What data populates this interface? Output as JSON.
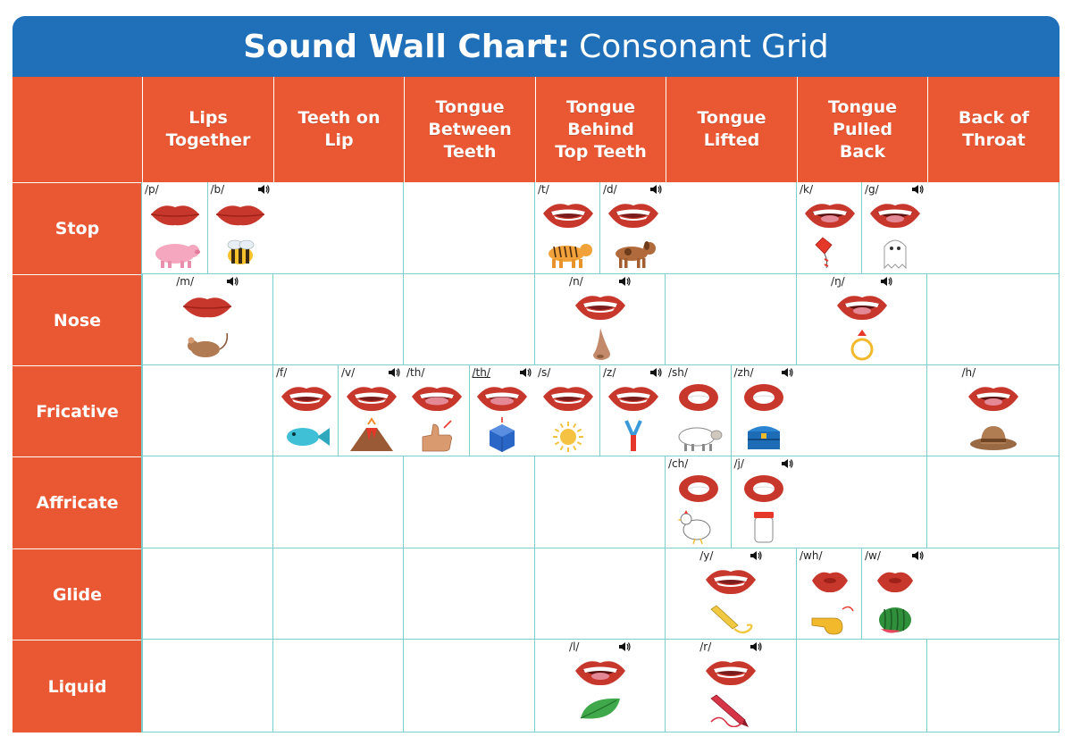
{
  "title": {
    "bold": "Sound Wall Chart:",
    "light": "Consonant Grid"
  },
  "columns": [
    "Lips Together",
    "Teeth on Lip",
    "Tongue Between Teeth",
    "Tongue Behind Top Teeth",
    "Tongue Lifted",
    "Tongue Pulled Back",
    "Back of Throat"
  ],
  "column_lines": [
    [
      "Lips",
      "Together"
    ],
    [
      "Teeth on",
      "Lip"
    ],
    [
      "Tongue",
      "Between",
      "Teeth"
    ],
    [
      "Tongue",
      "Behind",
      "Top Teeth"
    ],
    [
      "Tongue",
      "Lifted"
    ],
    [
      "Tongue",
      "Pulled",
      "Back"
    ],
    [
      "Back of",
      "Throat"
    ]
  ],
  "rows": [
    "Stop",
    "Nose",
    "Fricative",
    "Affricate",
    "Glide",
    "Liquid"
  ],
  "cards": [
    {
      "row": 0,
      "col": 0,
      "slot": 0,
      "symbol": "/p/",
      "mouth": "closed",
      "picture": "pig-icon",
      "speaker": false
    },
    {
      "row": 0,
      "col": 0,
      "slot": 1,
      "symbol": "/b/",
      "mouth": "closed",
      "picture": "bee-icon",
      "speaker": true
    },
    {
      "row": 0,
      "col": 3,
      "slot": 0,
      "symbol": "/t/",
      "mouth": "teeth",
      "picture": "tiger-icon",
      "speaker": false
    },
    {
      "row": 0,
      "col": 3,
      "slot": 1,
      "symbol": "/d/",
      "mouth": "teeth",
      "picture": "dog-icon",
      "speaker": true
    },
    {
      "row": 0,
      "col": 5,
      "slot": 0,
      "symbol": "/k/",
      "mouth": "open",
      "picture": "kite-icon",
      "speaker": false
    },
    {
      "row": 0,
      "col": 5,
      "slot": 1,
      "symbol": "/g/",
      "mouth": "open",
      "picture": "ghost-icon",
      "speaker": true
    },
    {
      "row": 1,
      "col": 0,
      "slot": -1,
      "symbol": "/m/",
      "mouth": "closed",
      "picture": "mouse-icon",
      "speaker": true
    },
    {
      "row": 1,
      "col": 3,
      "slot": -1,
      "symbol": "/n/",
      "mouth": "teeth",
      "picture": "nose-icon",
      "speaker": true
    },
    {
      "row": 1,
      "col": 5,
      "slot": -1,
      "symbol": "/ŋ/",
      "mouth": "open",
      "picture": "ring-icon",
      "speaker": true
    },
    {
      "row": 2,
      "col": 1,
      "slot": 0,
      "symbol": "/f/",
      "mouth": "teeth",
      "picture": "fish-icon",
      "speaker": false
    },
    {
      "row": 2,
      "col": 1,
      "slot": 1,
      "symbol": "/v/",
      "mouth": "teeth",
      "picture": "volcano-icon",
      "speaker": true
    },
    {
      "row": 2,
      "col": 2,
      "slot": 0,
      "symbol": "/th/",
      "mouth": "tongue",
      "picture": "thumb-icon",
      "speaker": false
    },
    {
      "row": 2,
      "col": 2,
      "slot": 1,
      "symbol": "/th/",
      "mouth": "tongue",
      "picture": "cube-icon",
      "speaker": true,
      "underline": true
    },
    {
      "row": 2,
      "col": 3,
      "slot": 0,
      "symbol": "/s/",
      "mouth": "teeth",
      "picture": "sun-icon",
      "speaker": false
    },
    {
      "row": 2,
      "col": 3,
      "slot": 1,
      "symbol": "/z/",
      "mouth": "teeth",
      "picture": "zipper-icon",
      "speaker": true
    },
    {
      "row": 2,
      "col": 4,
      "slot": 0,
      "symbol": "/sh/",
      "mouth": "round",
      "picture": "sheep-icon",
      "speaker": false
    },
    {
      "row": 2,
      "col": 4,
      "slot": 1,
      "symbol": "/zh/",
      "mouth": "round",
      "picture": "treasure-chest-icon",
      "speaker": true
    },
    {
      "row": 2,
      "col": 6,
      "slot": -1,
      "symbol": "/h/",
      "mouth": "open",
      "picture": "hat-icon",
      "speaker": false
    },
    {
      "row": 3,
      "col": 4,
      "slot": 0,
      "symbol": "/ch/",
      "mouth": "round",
      "picture": "chicken-icon",
      "speaker": false
    },
    {
      "row": 3,
      "col": 4,
      "slot": 1,
      "symbol": "/j/",
      "mouth": "round",
      "picture": "jar-icon",
      "speaker": true
    },
    {
      "row": 4,
      "col": 4,
      "slot": -1,
      "symbol": "/y/",
      "mouth": "teeth",
      "picture": "yarn-icon",
      "speaker": true
    },
    {
      "row": 4,
      "col": 5,
      "slot": 0,
      "symbol": "/wh/",
      "mouth": "pucker",
      "picture": "whistle-icon",
      "speaker": false
    },
    {
      "row": 4,
      "col": 5,
      "slot": 1,
      "symbol": "/w/",
      "mouth": "pucker",
      "picture": "watermelon-icon",
      "speaker": true
    },
    {
      "row": 5,
      "col": 3,
      "slot": -1,
      "symbol": "/l/",
      "mouth": "open",
      "picture": "leaf-icon",
      "speaker": true
    },
    {
      "row": 5,
      "col": 4,
      "slot": -1,
      "symbol": "/r/",
      "mouth": "teeth",
      "picture": "crayon-icon",
      "speaker": true
    }
  ],
  "colors": {
    "header_bg": "#1f6fb9",
    "orange": "#ea5733",
    "grid_line": "#7ccfce",
    "lip": "#c8372c",
    "lip_dark": "#9e2219",
    "tongue": "#e58896"
  }
}
